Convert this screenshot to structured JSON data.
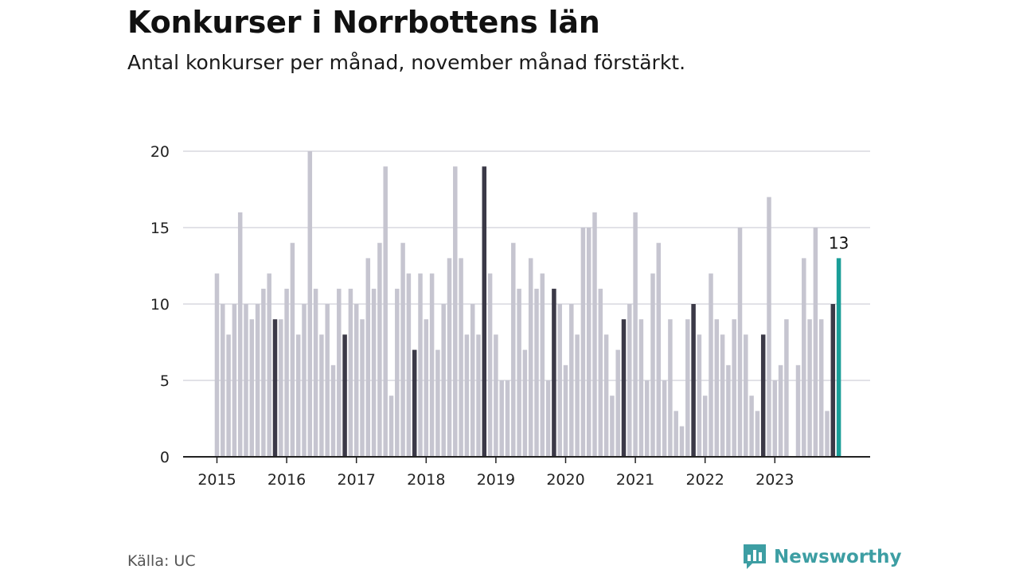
{
  "header": {
    "title": "Konkurser i Norrbottens län",
    "subtitle": "Antal konkurser per månad, november månad förstärkt."
  },
  "footer": {
    "source": "Källa: UC",
    "brand": "Newsworthy",
    "brand_icon": "newsworthy-logo-icon"
  },
  "colors": {
    "regular_bar": "#c6c5d0",
    "november_bar": "#3b3947",
    "latest_bar": "#1a9e98",
    "grid": "#d9d9df",
    "axis": "#222222",
    "brand": "#3d9ea3"
  },
  "chart_data": {
    "type": "bar",
    "title": "Konkurser i Norrbottens län",
    "subtitle": "Antal konkurser per månad, november månad förstärkt.",
    "xlabel": "",
    "ylabel": "",
    "ylim": [
      0,
      20
    ],
    "yticks": [
      0,
      5,
      10,
      15,
      20
    ],
    "grid": true,
    "start": "2015-01",
    "x_tick_labels": [
      "2015",
      "2016",
      "2017",
      "2018",
      "2019",
      "2020",
      "2021",
      "2022",
      "2023"
    ],
    "highlight": "november",
    "latest_label": "13",
    "values": [
      12,
      10,
      8,
      10,
      16,
      10,
      9,
      10,
      11,
      12,
      9,
      9,
      11,
      14,
      8,
      10,
      20,
      11,
      8,
      10,
      6,
      11,
      8,
      11,
      10,
      9,
      13,
      11,
      14,
      19,
      4,
      11,
      14,
      12,
      7,
      12,
      9,
      12,
      7,
      10,
      13,
      19,
      13,
      8,
      10,
      8,
      19,
      12,
      8,
      5,
      5,
      14,
      11,
      7,
      13,
      11,
      12,
      5,
      11,
      10,
      6,
      10,
      8,
      15,
      15,
      16,
      11,
      8,
      4,
      7,
      9,
      10,
      16,
      9,
      5,
      12,
      14,
      5,
      9,
      3,
      2,
      9,
      10,
      8,
      4,
      12,
      9,
      8,
      6,
      9,
      15,
      8,
      4,
      3,
      8,
      17,
      5,
      6,
      9,
      0,
      6,
      13,
      9,
      15,
      9,
      3,
      10,
      13
    ]
  }
}
